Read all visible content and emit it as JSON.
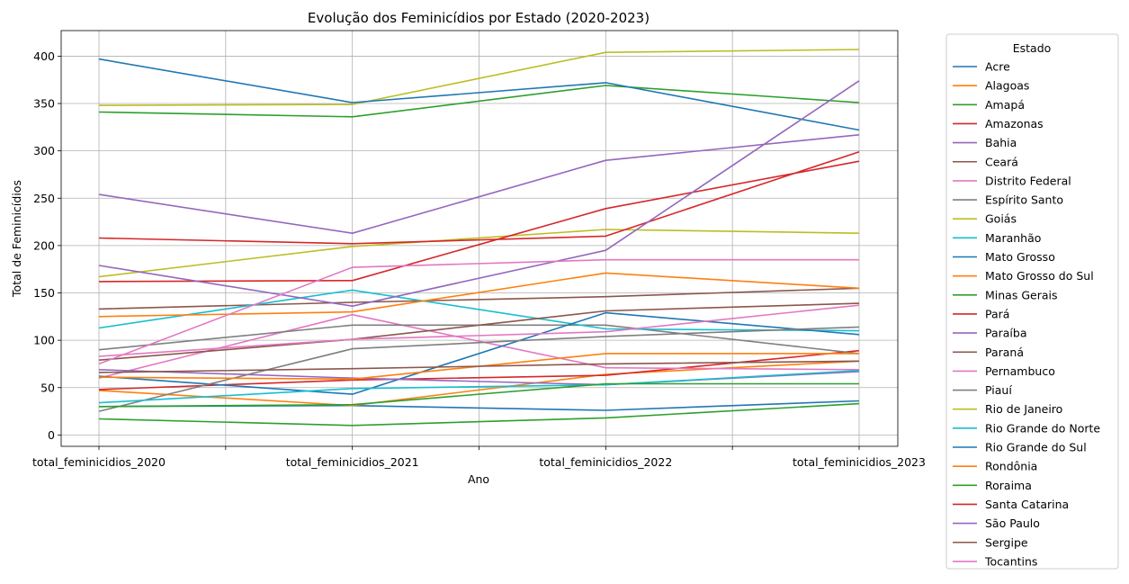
{
  "chart_data": {
    "type": "line",
    "title": "Evolução dos Feminicídios por Estado (2020-2023)",
    "xlabel": "Ano",
    "ylabel": "Total de Feminicídios",
    "categories": [
      "total_feminicidios_2020",
      "total_feminicidios_2021",
      "total_feminicidios_2022",
      "total_feminicidios_2023"
    ],
    "y_ticks": [
      0,
      50,
      100,
      150,
      200,
      250,
      300,
      350,
      400
    ],
    "ylim": [
      -12,
      427
    ],
    "grid": true,
    "legend_title": "Estado",
    "legend_position": "outside-right",
    "series": [
      {
        "name": "Acre",
        "color": "#1f77b4",
        "values": [
          30,
          31,
          26,
          36
        ]
      },
      {
        "name": "Alagoas",
        "color": "#ff7f0e",
        "values": [
          47,
          31,
          64,
          78
        ]
      },
      {
        "name": "Amapá",
        "color": "#2ca02c",
        "values": [
          17,
          10,
          18,
          33
        ]
      },
      {
        "name": "Amazonas",
        "color": "#d62728",
        "values": [
          48,
          58,
          63,
          89
        ]
      },
      {
        "name": "Bahia",
        "color": "#9467bd",
        "values": [
          254,
          213,
          290,
          317
        ]
      },
      {
        "name": "Ceará",
        "color": "#8c564b",
        "values": [
          133,
          140,
          146,
          155
        ]
      },
      {
        "name": "Distrito Federal",
        "color": "#e377c2",
        "values": [
          60,
          127,
          71,
          69
        ]
      },
      {
        "name": "Espírito Santo",
        "color": "#7f7f7f",
        "values": [
          90,
          116,
          116,
          86
        ]
      },
      {
        "name": "Goiás",
        "color": "#bcbd22",
        "values": [
          167,
          199,
          217,
          213
        ]
      },
      {
        "name": "Maranhão",
        "color": "#17becf",
        "values": [
          113,
          153,
          112,
          110
        ]
      },
      {
        "name": "Mato Grosso",
        "color": "#1f77b4",
        "values": [
          62,
          43,
          129,
          106
        ]
      },
      {
        "name": "Mato Grosso do Sul",
        "color": "#ff7f0e",
        "values": [
          125,
          130,
          171,
          155
        ]
      },
      {
        "name": "Minas Gerais",
        "color": "#2ca02c",
        "values": [
          341,
          336,
          369,
          351
        ]
      },
      {
        "name": "Pará",
        "color": "#d62728",
        "values": [
          162,
          163,
          239,
          289
        ]
      },
      {
        "name": "Paraíba",
        "color": "#9467bd",
        "values": [
          69,
          60,
          53,
          67
        ]
      },
      {
        "name": "Paraná",
        "color": "#8c564b",
        "values": [
          79,
          101,
          131,
          139
        ]
      },
      {
        "name": "Pernambuco",
        "color": "#e377c2",
        "values": [
          83,
          101,
          109,
          137
        ]
      },
      {
        "name": "Piauí",
        "color": "#7f7f7f",
        "values": [
          25,
          91,
          104,
          114
        ]
      },
      {
        "name": "Rio de Janeiro",
        "color": "#bcbd22",
        "values": [
          348,
          349,
          404,
          407
        ]
      },
      {
        "name": "Rio Grande do Norte",
        "color": "#17becf",
        "values": [
          34,
          49,
          53,
          68
        ]
      },
      {
        "name": "Rio Grande do Sul",
        "color": "#1f77b4",
        "values": [
          397,
          351,
          372,
          322
        ]
      },
      {
        "name": "Rondônia",
        "color": "#ff7f0e",
        "values": [
          61,
          59,
          86,
          86
        ]
      },
      {
        "name": "Roraima",
        "color": "#2ca02c",
        "values": [
          30,
          32,
          54,
          54
        ]
      },
      {
        "name": "Santa Catarina",
        "color": "#d62728",
        "values": [
          208,
          202,
          210,
          299
        ]
      },
      {
        "name": "São Paulo",
        "color": "#9467bd",
        "values": [
          179,
          136,
          195,
          374
        ]
      },
      {
        "name": "Sergipe",
        "color": "#8c564b",
        "values": [
          66,
          70,
          75,
          78
        ]
      },
      {
        "name": "Tocantins",
        "color": "#e377c2",
        "values": [
          75,
          177,
          185,
          185
        ]
      }
    ]
  }
}
